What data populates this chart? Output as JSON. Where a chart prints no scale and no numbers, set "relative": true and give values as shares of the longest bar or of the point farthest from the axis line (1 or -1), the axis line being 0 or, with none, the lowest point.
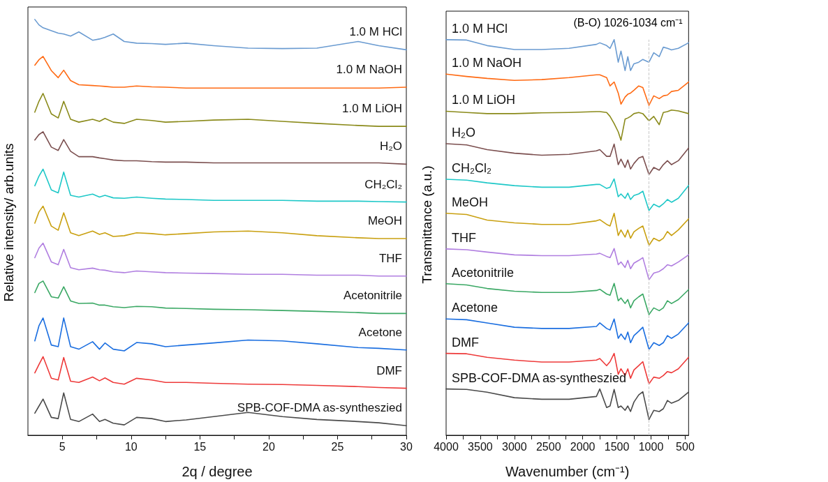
{
  "chart_data": [
    {
      "type": "line",
      "relative": true,
      "xlabel": "2q / degree",
      "ylabel": "Relative intensity/ arb.units",
      "xlim": [
        2.5,
        30
      ],
      "xticks": [
        5,
        {
          "value": 7.5,
          "label": null
        },
        10,
        {
          "value": 12.5,
          "label": null
        },
        15,
        {
          "value": 17.5,
          "label": null
        },
        20,
        {
          "value": 22.5,
          "label": null
        },
        25,
        {
          "value": 27.5,
          "label": null
        },
        30
      ],
      "tick_labels": "x",
      "grid": false,
      "legend": false,
      "x": [
        3,
        3.3,
        3.6,
        4.2,
        4.7,
        5.1,
        5.6,
        6.2,
        7.2,
        7.7,
        8.1,
        8.7,
        9.5,
        10.4,
        11.5,
        12.5,
        14,
        16,
        18.5,
        21,
        23.5,
        26.5,
        28,
        30
      ],
      "series": [
        {
          "name": "1.0 M HCl",
          "color": "#6a9bd1",
          "values": [
            1.0,
            0.987,
            0.98,
            0.973,
            0.967,
            0.965,
            0.96,
            0.97,
            0.95,
            0.953,
            0.957,
            0.965,
            0.947,
            0.943,
            0.942,
            0.94,
            0.943,
            0.937,
            0.931,
            0.93,
            0.931,
            0.947,
            0.937,
            0.927
          ]
        },
        {
          "name": "1.0 M NaOH",
          "color": "#ff6a13",
          "values": [
            0.89,
            0.903,
            0.911,
            0.877,
            0.86,
            0.878,
            0.853,
            0.843,
            0.841,
            0.84,
            0.839,
            0.837,
            0.837,
            0.84,
            0.838,
            0.837,
            0.835,
            0.835,
            0.835,
            0.835,
            0.835,
            0.835,
            0.835,
            0.837
          ]
        },
        {
          "name": "1.0 M LiOH",
          "color": "#8a8a1a",
          "values": [
            0.777,
            0.803,
            0.822,
            0.773,
            0.763,
            0.803,
            0.76,
            0.753,
            0.76,
            0.755,
            0.762,
            0.753,
            0.75,
            0.76,
            0.757,
            0.753,
            0.755,
            0.758,
            0.76,
            0.755,
            0.75,
            0.745,
            0.743,
            0.743
          ]
        },
        {
          "name": "H₂O",
          "color": "#7b4f4f",
          "values": [
            0.71,
            0.723,
            0.73,
            0.693,
            0.685,
            0.711,
            0.683,
            0.67,
            0.67,
            0.667,
            0.665,
            0.662,
            0.66,
            0.66,
            0.658,
            0.657,
            0.657,
            0.655,
            0.655,
            0.655,
            0.655,
            0.655,
            0.655,
            0.652
          ]
        },
        {
          "name": "CH₂Cl₂",
          "color": "#1ec8c8",
          "values": [
            0.6,
            0.623,
            0.64,
            0.59,
            0.583,
            0.633,
            0.577,
            0.573,
            0.58,
            0.573,
            0.577,
            0.571,
            0.57,
            0.573,
            0.57,
            0.568,
            0.567,
            0.565,
            0.565,
            0.565,
            0.563,
            0.563,
            0.562,
            0.561
          ]
        },
        {
          "name": "MeOH",
          "color": "#c9a010",
          "values": [
            0.51,
            0.537,
            0.551,
            0.503,
            0.493,
            0.535,
            0.487,
            0.48,
            0.491,
            0.483,
            0.487,
            0.478,
            0.48,
            0.487,
            0.485,
            0.482,
            0.485,
            0.489,
            0.491,
            0.487,
            0.48,
            0.475,
            0.473,
            0.473
          ]
        },
        {
          "name": "THF",
          "color": "#b07ee0",
          "values": [
            0.427,
            0.45,
            0.462,
            0.417,
            0.41,
            0.447,
            0.403,
            0.398,
            0.402,
            0.398,
            0.397,
            0.393,
            0.391,
            0.395,
            0.393,
            0.391,
            0.39,
            0.389,
            0.387,
            0.387,
            0.385,
            0.385,
            0.383,
            0.383
          ]
        },
        {
          "name": "Acetonitrile",
          "color": "#3aa864",
          "values": [
            0.343,
            0.365,
            0.371,
            0.333,
            0.33,
            0.357,
            0.323,
            0.317,
            0.318,
            0.313,
            0.313,
            0.309,
            0.307,
            0.31,
            0.309,
            0.306,
            0.305,
            0.303,
            0.302,
            0.3,
            0.298,
            0.295,
            0.293,
            0.293
          ]
        },
        {
          "name": "Acetone",
          "color": "#1a6ee0",
          "values": [
            0.227,
            0.263,
            0.282,
            0.217,
            0.213,
            0.282,
            0.213,
            0.207,
            0.225,
            0.207,
            0.222,
            0.207,
            0.203,
            0.223,
            0.22,
            0.213,
            0.217,
            0.222,
            0.229,
            0.227,
            0.22,
            0.211,
            0.209,
            0.205
          ]
        },
        {
          "name": "DMF",
          "color": "#ee3a3a",
          "values": [
            0.15,
            0.17,
            0.189,
            0.137,
            0.133,
            0.187,
            0.13,
            0.127,
            0.14,
            0.131,
            0.138,
            0.127,
            0.123,
            0.137,
            0.133,
            0.127,
            0.127,
            0.125,
            0.123,
            0.122,
            0.12,
            0.117,
            0.115,
            0.113
          ]
        },
        {
          "name": "SPB-COF-DMA as-syntheszied",
          "color": "#4a4a4a",
          "values": [
            0.053,
            0.07,
            0.087,
            0.043,
            0.04,
            0.102,
            0.038,
            0.033,
            0.051,
            0.033,
            0.038,
            0.029,
            0.025,
            0.043,
            0.04,
            0.033,
            0.037,
            0.045,
            0.055,
            0.045,
            0.038,
            0.033,
            0.03,
            0.023
          ]
        }
      ]
    },
    {
      "type": "line",
      "relative": true,
      "xlabel": "Wavenumber (cm⁻¹)",
      "ylabel": "Transmittance (a.u.)",
      "xlim": [
        4000,
        450
      ],
      "xticks": [
        4000,
        {
          "value": 3750,
          "label": null
        },
        3500,
        {
          "value": 3250,
          "label": null
        },
        3000,
        {
          "value": 2750,
          "label": null
        },
        2500,
        {
          "value": 2250,
          "label": null
        },
        2000,
        {
          "value": 1750,
          "label": null
        },
        1500,
        {
          "value": 1250,
          "label": null
        },
        1000,
        {
          "value": 750,
          "label": null
        },
        500
      ],
      "tick_labels": "x",
      "grid": false,
      "legend": false,
      "ref_lines": [
        {
          "axis": "x",
          "value": 1030,
          "label": "(B-O) 1026-1034 cm⁻¹",
          "color": "#c8c8c8",
          "line_style": "dashed"
        }
      ],
      "x": [
        4000,
        3700,
        3400,
        3000,
        2600,
        2200,
        1800,
        1750,
        1650,
        1600,
        1540,
        1480,
        1440,
        1380,
        1340,
        1300,
        1250,
        1180,
        1120,
        1030,
        960,
        880,
        820,
        760,
        700,
        600,
        450
      ],
      "series": [
        {
          "name": "1.0 M HCl",
          "color": "#6a9bd1",
          "values": [
            1.0,
            0.999,
            0.985,
            0.975,
            0.975,
            0.978,
            0.988,
            0.992,
            0.985,
            0.978,
            1.0,
            0.943,
            0.971,
            0.922,
            0.957,
            0.922,
            0.939,
            0.943,
            0.95,
            0.943,
            0.967,
            0.957,
            0.981,
            0.978,
            0.974,
            0.978,
            0.992
          ]
        },
        {
          "name": "1.0 M NaOH",
          "color": "#ff6a13",
          "values": [
            0.913,
            0.907,
            0.902,
            0.897,
            0.899,
            0.904,
            0.911,
            0.911,
            0.904,
            0.883,
            0.893,
            0.865,
            0.837,
            0.855,
            0.862,
            0.865,
            0.872,
            0.883,
            0.879,
            0.834,
            0.858,
            0.851,
            0.858,
            0.86,
            0.869,
            0.872,
            0.893
          ]
        },
        {
          "name": "1.0 M LiOH",
          "color": "#8a8a1a",
          "values": [
            0.819,
            0.816,
            0.813,
            0.813,
            0.815,
            0.816,
            0.818,
            0.818,
            0.816,
            0.806,
            0.788,
            0.767,
            0.746,
            0.799,
            0.802,
            0.806,
            0.813,
            0.816,
            0.813,
            0.795,
            0.806,
            0.785,
            0.816,
            0.818,
            0.822,
            0.82,
            0.813
          ]
        },
        {
          "name": "H₂O",
          "color": "#7b4f4f",
          "values": [
            0.737,
            0.734,
            0.722,
            0.713,
            0.708,
            0.71,
            0.719,
            0.722,
            0.705,
            0.705,
            0.736,
            0.684,
            0.698,
            0.677,
            0.696,
            0.673,
            0.687,
            0.701,
            0.705,
            0.659,
            0.677,
            0.67,
            0.684,
            0.694,
            0.684,
            0.694,
            0.726
          ]
        },
        {
          "name": "CH₂Cl₂",
          "color": "#1ec8c8",
          "values": [
            0.647,
            0.645,
            0.638,
            0.631,
            0.627,
            0.627,
            0.634,
            0.634,
            0.624,
            0.627,
            0.648,
            0.603,
            0.61,
            0.599,
            0.612,
            0.596,
            0.606,
            0.61,
            0.617,
            0.568,
            0.584,
            0.577,
            0.585,
            0.596,
            0.589,
            0.599,
            0.631
          ]
        },
        {
          "name": "MeOH",
          "color": "#c9a010",
          "values": [
            0.561,
            0.558,
            0.544,
            0.537,
            0.533,
            0.533,
            0.542,
            0.545,
            0.533,
            0.529,
            0.561,
            0.505,
            0.519,
            0.501,
            0.519,
            0.498,
            0.514,
            0.523,
            0.529,
            0.48,
            0.498,
            0.491,
            0.498,
            0.515,
            0.505,
            0.519,
            0.547
          ]
        },
        {
          "name": "THF",
          "color": "#b07ee0",
          "values": [
            0.471,
            0.469,
            0.463,
            0.456,
            0.454,
            0.454,
            0.458,
            0.46,
            0.452,
            0.449,
            0.472,
            0.431,
            0.438,
            0.424,
            0.442,
            0.421,
            0.435,
            0.442,
            0.449,
            0.393,
            0.41,
            0.414,
            0.421,
            0.431,
            0.428,
            0.438,
            0.456
          ]
        },
        {
          "name": "Acetonitrile",
          "color": "#3aa864",
          "values": [
            0.383,
            0.38,
            0.371,
            0.364,
            0.361,
            0.361,
            0.366,
            0.369,
            0.357,
            0.354,
            0.384,
            0.34,
            0.347,
            0.333,
            0.343,
            0.322,
            0.34,
            0.35,
            0.357,
            0.305,
            0.322,
            0.315,
            0.322,
            0.34,
            0.333,
            0.343,
            0.368
          ]
        },
        {
          "name": "Acetone",
          "color": "#1a6ee0",
          "values": [
            0.294,
            0.292,
            0.284,
            0.273,
            0.27,
            0.27,
            0.275,
            0.284,
            0.27,
            0.266,
            0.294,
            0.245,
            0.256,
            0.242,
            0.261,
            0.234,
            0.252,
            0.263,
            0.273,
            0.217,
            0.234,
            0.227,
            0.234,
            0.252,
            0.245,
            0.256,
            0.284
          ]
        },
        {
          "name": "DMF",
          "color": "#ee3a3a",
          "values": [
            0.207,
            0.206,
            0.197,
            0.19,
            0.185,
            0.185,
            0.19,
            0.194,
            0.176,
            0.186,
            0.207,
            0.154,
            0.168,
            0.151,
            0.168,
            0.144,
            0.165,
            0.176,
            0.186,
            0.13,
            0.147,
            0.144,
            0.151,
            0.161,
            0.158,
            0.168,
            0.197
          ]
        },
        {
          "name": "SPB-COF-DMA as-syntheszied",
          "color": "#4a4a4a",
          "values": [
            0.117,
            0.116,
            0.109,
            0.095,
            0.091,
            0.091,
            0.098,
            0.117,
            0.07,
            0.074,
            0.116,
            0.07,
            0.074,
            0.063,
            0.074,
            0.06,
            0.084,
            0.102,
            0.11,
            0.04,
            0.063,
            0.06,
            0.067,
            0.088,
            0.081,
            0.088,
            0.109
          ]
        }
      ]
    }
  ]
}
